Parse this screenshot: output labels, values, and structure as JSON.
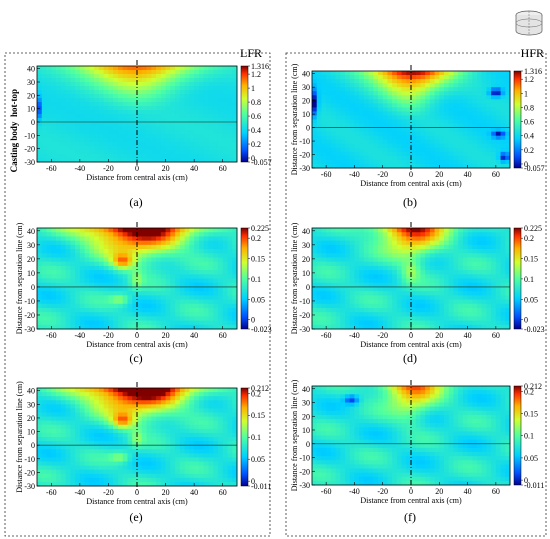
{
  "figure": {
    "column_titles": [
      "LFR",
      "HFR"
    ],
    "region_labels": [
      "hot-top",
      "Casting body"
    ]
  },
  "chart_data": [
    {
      "type": "heatmap",
      "label": "(a)",
      "xlabel": "Distance from central axis (cm)",
      "ylabel": "",
      "x_ticks": [
        -60,
        -40,
        -20,
        0,
        20,
        40,
        60
      ],
      "y_ticks": [
        40,
        30,
        20,
        10,
        0,
        -10,
        -20,
        -30
      ],
      "xlim": [
        -70,
        70
      ],
      "ylim": [
        -30,
        42
      ],
      "colorbar_ticks": [
        "1.316",
        "1.2",
        "1",
        "0.8",
        "0.6",
        "0.4",
        "0.2",
        "0",
        "-0.057"
      ],
      "vmin": -0.057,
      "vmax": 1.316
    },
    {
      "type": "heatmap",
      "label": "(b)",
      "xlabel": "Distance from central axis (cm)",
      "ylabel": "Distance from separation line (cm)",
      "x_ticks": [
        -60,
        -40,
        -20,
        0,
        20,
        40,
        60
      ],
      "y_ticks": [
        40,
        30,
        20,
        10,
        0,
        -10,
        -20,
        -30
      ],
      "xlim": [
        -70,
        70
      ],
      "ylim": [
        -30,
        42
      ],
      "colorbar_ticks": [
        "1.316",
        "1.2",
        "1",
        "0.8",
        "0.6",
        "0.4",
        "0.2",
        "0",
        "-0.057"
      ],
      "vmin": -0.057,
      "vmax": 1.316
    },
    {
      "type": "heatmap",
      "label": "(c)",
      "xlabel": "Distance from central axis (cm)",
      "ylabel": "Distance from separation line (cm)",
      "x_ticks": [
        -60,
        -40,
        -20,
        0,
        20,
        40,
        60
      ],
      "y_ticks": [
        40,
        30,
        20,
        10,
        0,
        -10,
        -20,
        -30
      ],
      "xlim": [
        -70,
        70
      ],
      "ylim": [
        -30,
        42
      ],
      "colorbar_ticks": [
        "0.225",
        "0.2",
        "0.15",
        "0.1",
        "0.05",
        "0",
        "-0.023"
      ],
      "vmin": -0.023,
      "vmax": 0.225
    },
    {
      "type": "heatmap",
      "label": "(d)",
      "xlabel": "Distance from central axis (cm)",
      "ylabel": "Distance from separation line (cm)",
      "x_ticks": [
        -60,
        -40,
        -20,
        0,
        20,
        40,
        60
      ],
      "y_ticks": [
        40,
        30,
        20,
        10,
        0,
        -10,
        -20,
        -30
      ],
      "xlim": [
        -70,
        70
      ],
      "ylim": [
        -30,
        42
      ],
      "colorbar_ticks": [
        "0.225",
        "0.2",
        "0.15",
        "0.1",
        "0.05",
        "0",
        "-0.023"
      ],
      "vmin": -0.023,
      "vmax": 0.225
    },
    {
      "type": "heatmap",
      "label": "(e)",
      "xlabel": "Distance from central axis (cm)",
      "ylabel": "Distance from separation line (cm)",
      "x_ticks": [
        -60,
        -40,
        -20,
        0,
        20,
        40,
        60
      ],
      "y_ticks": [
        40,
        30,
        20,
        10,
        0,
        -10,
        -20,
        -30
      ],
      "xlim": [
        -70,
        70
      ],
      "ylim": [
        -30,
        42
      ],
      "colorbar_ticks": [
        "0.212",
        "0.2",
        "0.15",
        "0.1",
        "0.05",
        "0",
        "-0.011"
      ],
      "vmin": -0.011,
      "vmax": 0.212
    },
    {
      "type": "heatmap",
      "label": "(f)",
      "xlabel": "Distance from central axis (cm)",
      "ylabel": "Distance from separation line (cm)",
      "x_ticks": [
        -60,
        -40,
        -20,
        0,
        20,
        40,
        60
      ],
      "y_ticks": [
        40,
        30,
        20,
        10,
        0,
        -10,
        -20,
        -30
      ],
      "xlim": [
        -70,
        70
      ],
      "ylim": [
        -30,
        42
      ],
      "colorbar_ticks": [
        "0.212",
        "0.2",
        "0.15",
        "0.1",
        "0.05",
        "0",
        "-0.011"
      ],
      "vmin": -0.011,
      "vmax": 0.212
    }
  ]
}
